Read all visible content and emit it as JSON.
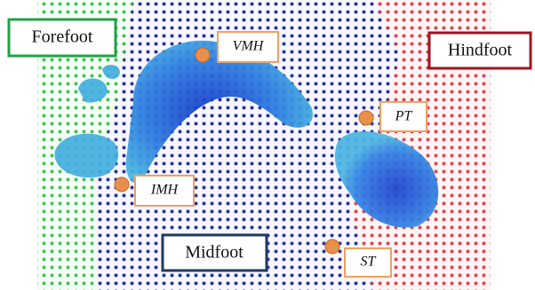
{
  "regions": {
    "forefoot": "Forefoot",
    "midfoot": "Midfoot",
    "hindfoot": "Hindfoot"
  },
  "points": [
    {
      "label": "VMH"
    },
    {
      "label": "PT"
    },
    {
      "label": "IMH"
    },
    {
      "label": "ST"
    }
  ]
}
